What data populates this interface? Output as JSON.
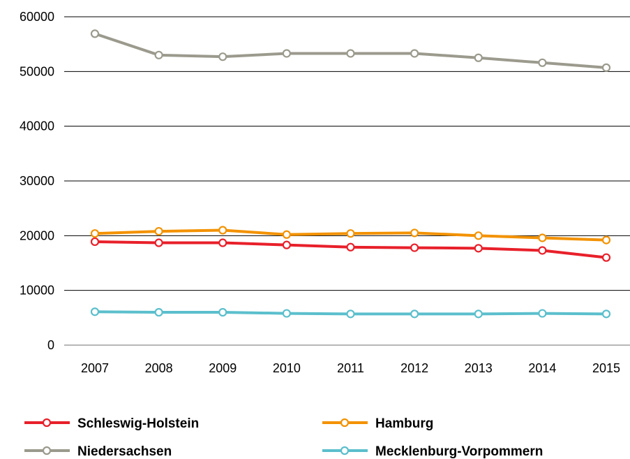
{
  "chart_data": {
    "type": "line",
    "title": "",
    "xlabel": "",
    "ylabel": "",
    "x": [
      "2007",
      "2008",
      "2009",
      "2010",
      "2011",
      "2012",
      "2013",
      "2014",
      "2015"
    ],
    "ylim": [
      0,
      60000
    ],
    "yticks": [
      "0",
      "10000",
      "20000",
      "30000",
      "40000",
      "50000",
      "60000"
    ],
    "grid": "horizontal",
    "legend_position": "bottom",
    "series": [
      {
        "name": "Schleswig-Holstein",
        "color": "#e8202a",
        "values": [
          18900,
          18700,
          18700,
          18300,
          17900,
          17800,
          17700,
          17300,
          16000
        ]
      },
      {
        "name": "Hamburg",
        "color": "#f39200",
        "values": [
          20400,
          20800,
          21000,
          20200,
          20400,
          20500,
          20000,
          19600,
          19200
        ]
      },
      {
        "name": "Niedersachsen",
        "color": "#9b9a8d",
        "values": [
          56900,
          53000,
          52700,
          53300,
          53300,
          53300,
          52500,
          51600,
          50700
        ]
      },
      {
        "name": "Mecklenburg-Vorpommern",
        "color": "#5bbfcc",
        "values": [
          6100,
          6000,
          6000,
          5800,
          5700,
          5700,
          5700,
          5800,
          5700
        ]
      }
    ]
  }
}
